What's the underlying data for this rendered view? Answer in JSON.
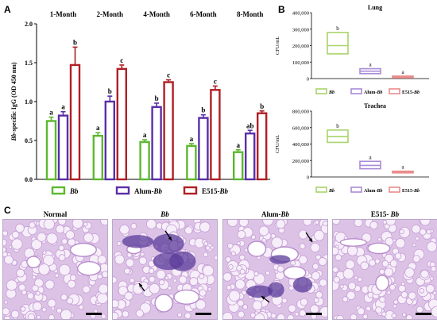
{
  "panels": {
    "a": "A",
    "b": "B",
    "c": "C"
  },
  "colors": {
    "bb": "#5cb82e",
    "alum": "#5a2ea8",
    "e515": "#b01f24",
    "bb_light": "#a9d46a",
    "alum_light": "#a98bd8",
    "e515_light": "#e98c8c",
    "tissue": "#c9a3d8",
    "tissue_dark": "#5b3b9a"
  },
  "chart_data": [
    {
      "type": "bar",
      "panel": "A",
      "ylabel_italic": "Bb",
      "ylabel_rest": "-specific IgG (OD 450 nm)",
      "ylim": [
        0,
        2.0
      ],
      "yticks": [
        "0.0",
        "0.5",
        "1.0",
        "1.5",
        "2.0"
      ],
      "categories": [
        "1-Month",
        "2-Month",
        "4-Month",
        "6-Month",
        "8-Month"
      ],
      "series": [
        {
          "name": "Bb",
          "name_italic": "Bb",
          "name_prefix": "",
          "values": [
            0.75,
            0.56,
            0.48,
            0.43,
            0.35
          ],
          "errors": [
            0.05,
            0.04,
            0.03,
            0.03,
            0.03
          ],
          "letters": [
            "a",
            "a",
            "a",
            "a",
            "a"
          ]
        },
        {
          "name": "Alum-Bb",
          "name_italic": "Bb",
          "name_prefix": "Alum-",
          "values": [
            0.82,
            1.0,
            0.93,
            0.79,
            0.59
          ],
          "errors": [
            0.05,
            0.07,
            0.05,
            0.04,
            0.04
          ],
          "letters": [
            "a",
            "b",
            "b",
            "b",
            "ab"
          ]
        },
        {
          "name": "E515-Bb",
          "name_italic": "Bb",
          "name_prefix": "E515-",
          "values": [
            1.47,
            1.42,
            1.25,
            1.15,
            0.85
          ],
          "errors": [
            0.23,
            0.05,
            0.03,
            0.05,
            0.03
          ],
          "letters": [
            "b",
            "c",
            "c",
            "c",
            "b"
          ]
        }
      ],
      "legend": "bottom"
    },
    {
      "type": "box",
      "panel": "B",
      "title": "Lung",
      "ylabel": "CFU/mL",
      "ylim": [
        0,
        400000
      ],
      "yticks": [
        "0",
        "100,000",
        "200,000",
        "300,000",
        "400,000"
      ],
      "groups": [
        {
          "name": "Bb",
          "q1": 150000,
          "median": 200000,
          "q3": 280000,
          "letter": "b"
        },
        {
          "name": "Alum-Bb",
          "q1": 30000,
          "median": 45000,
          "q3": 60000,
          "letter": "a"
        },
        {
          "name": "E515-Bb",
          "q1": 5000,
          "median": 10000,
          "q3": 15000,
          "letter": "a"
        }
      ]
    },
    {
      "type": "box",
      "panel": "B",
      "title": "Trachea",
      "ylabel": "CFU/mL",
      "ylim": [
        0,
        800000
      ],
      "yticks": [
        "0",
        "200,000",
        "400,000",
        "600,000",
        "800,000"
      ],
      "groups": [
        {
          "name": "Bb",
          "q1": 420000,
          "median": 490000,
          "q3": 570000,
          "letter": "b"
        },
        {
          "name": "Alum-Bb",
          "q1": 100000,
          "median": 140000,
          "q3": 190000,
          "letter": "a"
        },
        {
          "name": "E515-Bb",
          "q1": 50000,
          "median": 60000,
          "q3": 70000,
          "letter": "a"
        }
      ]
    }
  ],
  "micrographs": [
    {
      "title_prefix": "Normal",
      "title_italic": "",
      "arrows": 0,
      "lesion": false
    },
    {
      "title_prefix": "",
      "title_italic": "Bb",
      "arrows": 2,
      "lesion": true
    },
    {
      "title_prefix": "Alum-",
      "title_italic": "Bb",
      "arrows": 2,
      "lesion": true
    },
    {
      "title_prefix": "E515- ",
      "title_italic": "Bb",
      "arrows": 0,
      "lesion": false
    }
  ]
}
